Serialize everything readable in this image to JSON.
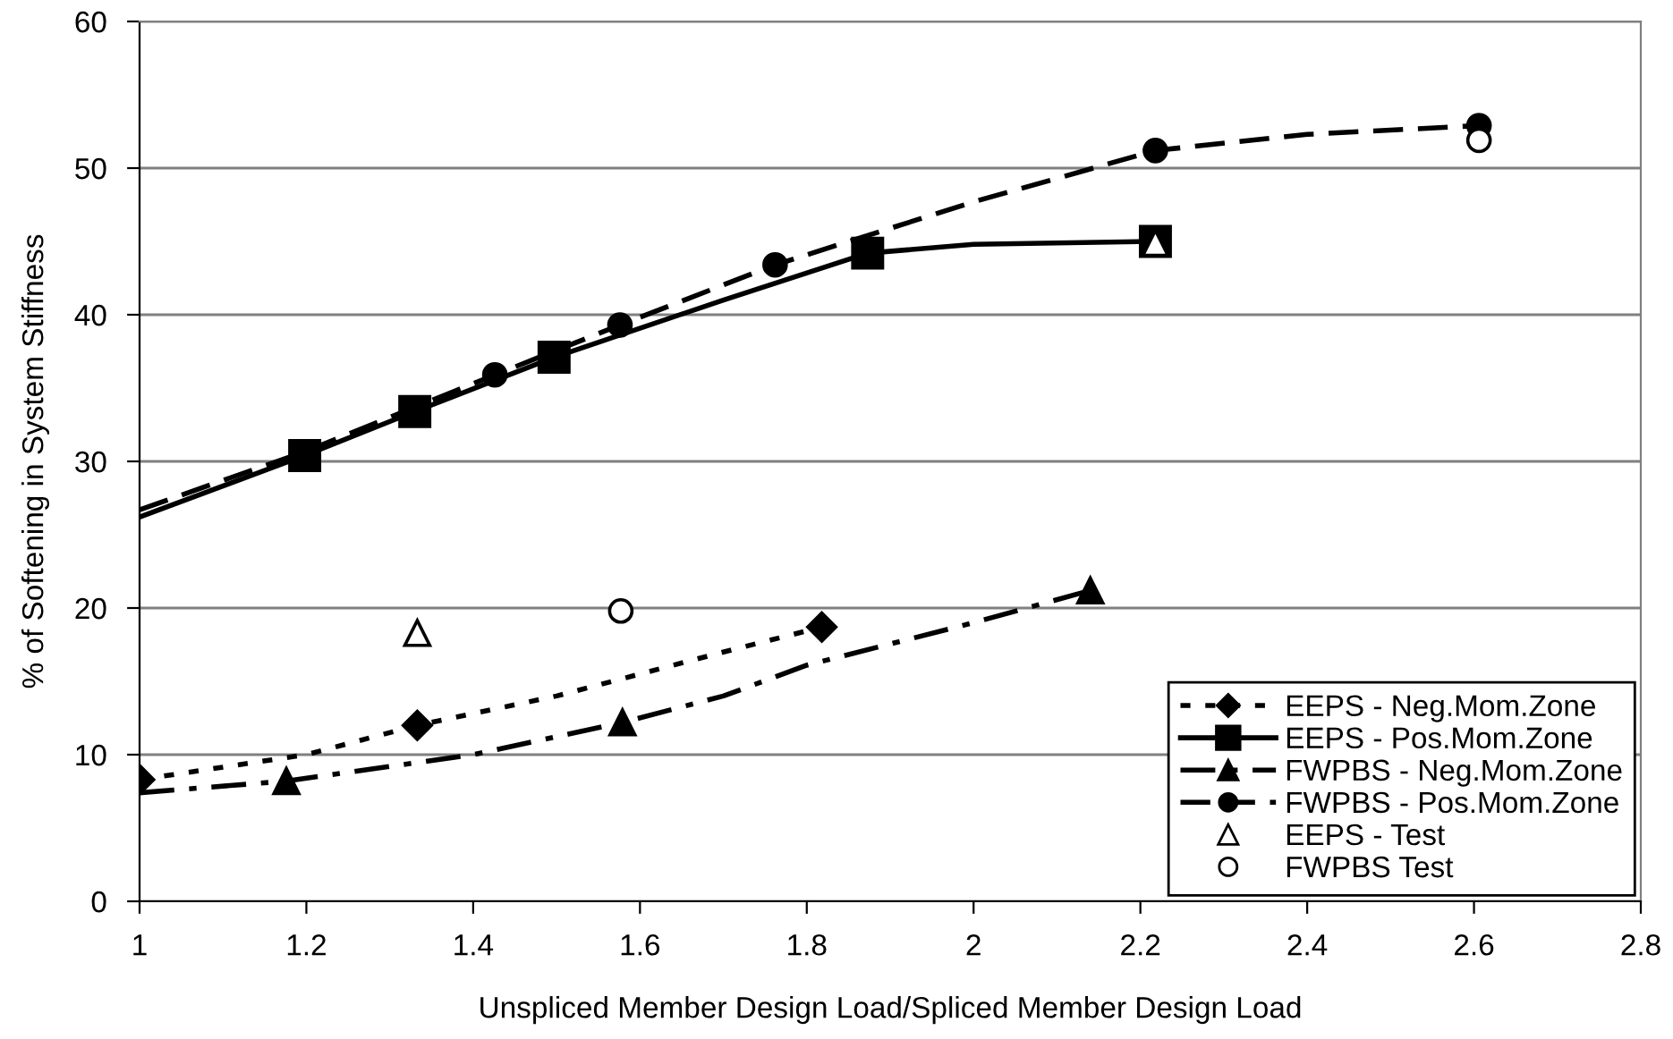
{
  "chart_data": {
    "type": "line",
    "xlabel": "Unspliced Member Design Load/Spliced Member Design Load",
    "ylabel": "% of Softening in System Stiffness",
    "xlim": [
      1,
      2.8
    ],
    "xticks": [
      1,
      1.2,
      1.4,
      1.6,
      1.8,
      2,
      2.2,
      2.4,
      2.6,
      2.8
    ],
    "ylim": [
      0,
      60
    ],
    "yticks": [
      0,
      10,
      20,
      30,
      40,
      50,
      60
    ],
    "grid": "y",
    "legend": "bottom right",
    "series": [
      {
        "color": "#000000",
        "line_style": "dotted",
        "x": [
          1,
          1.2,
          1.333,
          1.5,
          1.6,
          1.7,
          1.818
        ],
        "values": [
          8.3,
          10.0,
          12.0,
          14.0,
          15.5,
          17.0,
          18.7
        ]
      },
      {
        "color": "#000000",
        "line_style": "solid",
        "x": [
          1,
          1.198,
          1.33,
          1.497,
          1.7,
          1.873,
          2.0,
          2.218
        ],
        "values": [
          26.2,
          30.4,
          33.4,
          37.1,
          41.0,
          44.2,
          44.8,
          45.0
        ]
      },
      {
        "color": "#000000",
        "line_style": "dashdot",
        "x": [
          1,
          1.176,
          1.3,
          1.4,
          1.579,
          1.7,
          1.8,
          2.0,
          2.14
        ],
        "values": [
          7.4,
          8.2,
          9.2,
          10.0,
          12.2,
          14.0,
          16.1,
          19.0,
          21.2
        ]
      },
      {
        "color": "#000000",
        "line_style": "dashed",
        "x": [
          1,
          1.2,
          1.426,
          1.576,
          1.762,
          2.0,
          2.1,
          2.218,
          2.4,
          2.606
        ],
        "values": [
          26.7,
          30.7,
          35.9,
          39.3,
          43.4,
          47.7,
          49.3,
          51.2,
          52.3,
          52.9
        ]
      },
      {
        "type": "scatter",
        "name": "EEPS - Neg.Mom.Zone",
        "color": "#000000",
        "marker": "diamond",
        "line_style": "dotted",
        "x": [
          1.0,
          1.333,
          1.818
        ],
        "values": [
          8.3,
          12.0,
          18.7
        ]
      },
      {
        "type": "scatter",
        "name": "EEPS - Pos.Mom.Zone",
        "color": "#000000",
        "marker": "square",
        "line_style": "solid",
        "x": [
          1.198,
          1.33,
          1.497,
          1.873,
          2.218
        ],
        "values": [
          30.4,
          33.4,
          37.1,
          44.2,
          45.0
        ]
      },
      {
        "type": "scatter",
        "name": "FWPBS - Neg.Mom.Zone",
        "color": "#000000",
        "marker": "triangle",
        "line_style": "dashdot",
        "x": [
          1.176,
          1.579,
          2.14
        ],
        "values": [
          8.2,
          12.2,
          21.2
        ]
      },
      {
        "type": "scatter",
        "name": "FWPBS - Pos.Mom.Zone",
        "color": "#000000",
        "marker": "circle",
        "line_style": "dashed",
        "x": [
          1.426,
          1.576,
          1.762,
          2.218,
          2.606
        ],
        "values": [
          35.9,
          39.3,
          43.4,
          51.2,
          52.9
        ]
      },
      {
        "type": "scatter",
        "name": "EEPS - Test",
        "color": "#ffffff",
        "marker": "triangle",
        "x": [
          1.333,
          2.218
        ],
        "values": [
          18.3,
          44.9
        ]
      },
      {
        "type": "scatter",
        "name": "FWPBS Test",
        "color": "#ffffff",
        "marker": "circle",
        "x": [
          1.577,
          2.606
        ],
        "values": [
          19.8,
          51.9
        ]
      }
    ]
  }
}
